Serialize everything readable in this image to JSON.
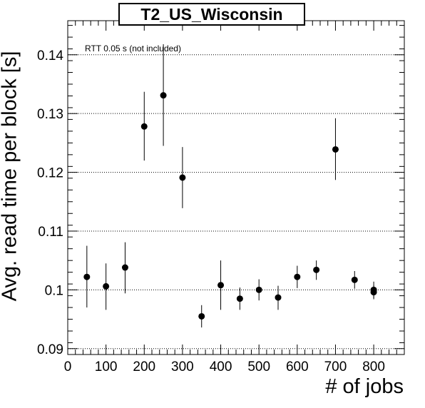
{
  "chart_data": {
    "type": "scatter",
    "title": "T2_US_Wisconsin",
    "xlabel": "# of jobs",
    "ylabel": "Avg. read time per block [s]",
    "annotation": "RTT 0.05 s (not included)",
    "xlim": [
      0,
      880
    ],
    "ylim": [
      0.089,
      0.1458
    ],
    "x_ticks": [
      0,
      100,
      200,
      300,
      400,
      500,
      600,
      700,
      800
    ],
    "y_ticks": [
      0.09,
      0.1,
      0.11,
      0.12,
      0.13,
      0.14
    ],
    "y_tick_labels": [
      "0.09",
      "0.1",
      "0.11",
      "0.12",
      "0.13",
      "0.14"
    ],
    "grid": "horizontal-dotted",
    "series": [
      {
        "points": [
          {
            "x": 50,
            "y": 0.1022,
            "ylo": 0.097,
            "yhi": 0.1075
          },
          {
            "x": 100,
            "y": 0.1006,
            "ylo": 0.0966,
            "yhi": 0.1045
          },
          {
            "x": 150,
            "y": 0.1038,
            "ylo": 0.0994,
            "yhi": 0.1081
          },
          {
            "x": 200,
            "y": 0.1278,
            "ylo": 0.122,
            "yhi": 0.1337
          },
          {
            "x": 250,
            "y": 0.1331,
            "ylo": 0.1245,
            "yhi": 0.1418
          },
          {
            "x": 300,
            "y": 0.1191,
            "ylo": 0.1139,
            "yhi": 0.1243
          },
          {
            "x": 350,
            "y": 0.0955,
            "ylo": 0.0936,
            "yhi": 0.0974
          },
          {
            "x": 400,
            "y": 0.1008,
            "ylo": 0.0966,
            "yhi": 0.105
          },
          {
            "x": 450,
            "y": 0.0985,
            "ylo": 0.0966,
            "yhi": 0.1004
          },
          {
            "x": 500,
            "y": 0.1,
            "ylo": 0.0982,
            "yhi": 0.1018
          },
          {
            "x": 550,
            "y": 0.0987,
            "ylo": 0.0966,
            "yhi": 0.1007
          },
          {
            "x": 600,
            "y": 0.1022,
            "ylo": 0.1003,
            "yhi": 0.1041
          },
          {
            "x": 650,
            "y": 0.1034,
            "ylo": 0.1017,
            "yhi": 0.105
          },
          {
            "x": 700,
            "y": 0.1239,
            "ylo": 0.1187,
            "yhi": 0.1292
          },
          {
            "x": 750,
            "y": 0.1017,
            "ylo": 0.1002,
            "yhi": 0.1032
          },
          {
            "x": 800,
            "y": 0.1,
            "ylo": 0.0986,
            "yhi": 0.1014
          },
          {
            "x": 800,
            "y": 0.0996,
            "ylo": 0.0984,
            "yhi": 0.1008
          }
        ]
      }
    ]
  }
}
